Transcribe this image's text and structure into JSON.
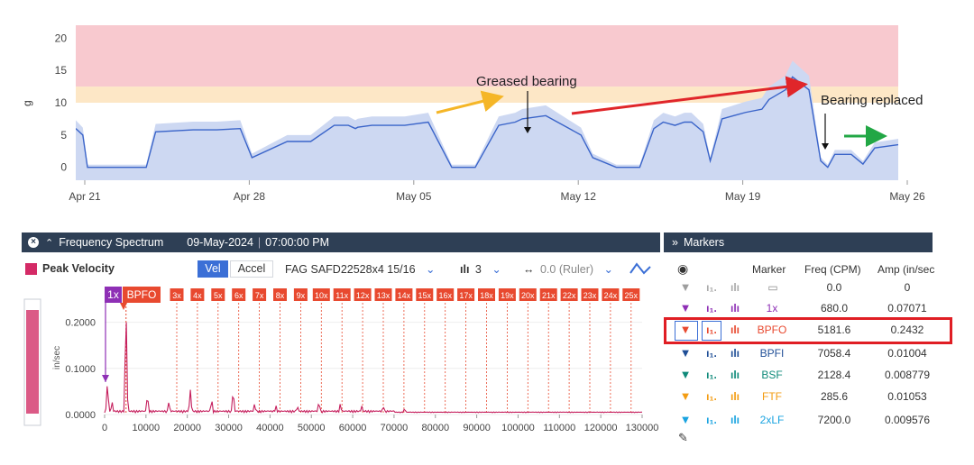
{
  "trend": {
    "y_axis_label": "g",
    "y_ticks": [
      "20",
      "15",
      "10",
      "5",
      "0"
    ],
    "x_ticks": [
      "Apr 21",
      "Apr 28",
      "May 05",
      "May 12",
      "May 19",
      "May 26"
    ],
    "annotations": {
      "greased": "Greased bearing",
      "replaced": "Bearing replaced"
    },
    "colors": {
      "alarm": "#f8c9cf",
      "alert": "#fde7c6",
      "fill": "#cdd8f2",
      "line": "#3a64c9",
      "arrow_yellow": "#f5b627",
      "arrow_red": "#e0262a",
      "arrow_green": "#22a745"
    }
  },
  "spectrum": {
    "title": "Frequency Spectrum",
    "date": "09-May-2024",
    "separator": "|",
    "time": "07:00:00 PM",
    "legend_label": "Peak Velocity",
    "vel_label": "Vel",
    "accel_label": "Accel",
    "bearing": "FAG SAFD22528x4 15/16",
    "harmonics_count": "3",
    "ruler": "0.0 (Ruler)",
    "y_axis_label": "in/sec",
    "y_ticks": [
      "0.2000",
      "0.1000",
      "0.0000"
    ],
    "x_ticks": [
      "0",
      "10000",
      "20000",
      "30000",
      "40000",
      "50000",
      "60000",
      "70000",
      "80000",
      "90000",
      "100000",
      "110000",
      "120000",
      "130000"
    ],
    "harmonic_labels": [
      "3x",
      "4x",
      "5x",
      "6x",
      "7x",
      "8x",
      "9x",
      "10x",
      "11x",
      "12x",
      "13x",
      "14x",
      "15x",
      "16x",
      "17x",
      "18x",
      "19x",
      "20x",
      "21x",
      "22x",
      "23x",
      "24x",
      "25x"
    ],
    "marker_1x": "1x",
    "marker_bpfo": "BPFO"
  },
  "markers": {
    "title": "Markers",
    "columns": [
      "Marker",
      "Freq (CPM)",
      "Amp (in/sec"
    ],
    "rows": [
      {
        "name": "",
        "freq": "0.0",
        "amp": "0",
        "color": "#9e9e9e"
      },
      {
        "name": "1x",
        "freq": "680.0",
        "amp": "0.07071",
        "color": "#8e2fb5"
      },
      {
        "name": "BPFO",
        "freq": "5181.6",
        "amp": "0.2432",
        "color": "#e8492f"
      },
      {
        "name": "BPFI",
        "freq": "7058.4",
        "amp": "0.01004",
        "color": "#1f4e96"
      },
      {
        "name": "BSF",
        "freq": "2128.4",
        "amp": "0.008779",
        "color": "#0f8a7a"
      },
      {
        "name": "FTF",
        "freq": "285.6",
        "amp": "0.01053",
        "color": "#f39c12"
      },
      {
        "name": "2xLF",
        "freq": "7200.0",
        "amp": "0.009576",
        "color": "#19a3e0"
      }
    ]
  },
  "chart_data": [
    {
      "type": "area",
      "title": "",
      "ylabel": "g",
      "xlabel": "",
      "ylim": [
        -2,
        22
      ],
      "x_categories": [
        "Apr 21",
        "Apr 28",
        "May 05",
        "May 12",
        "May 19",
        "May 26"
      ],
      "bands": [
        {
          "name": "alarm",
          "from": 12.5,
          "to": 22
        },
        {
          "name": "alert",
          "from": 10,
          "to": 12.5
        }
      ],
      "series": [
        {
          "name": "g",
          "x_days": [
            0,
            0.3,
            0.5,
            3,
            3.4,
            5,
            6,
            7,
            7.5,
            9,
            10,
            11,
            11.6,
            11.9,
            12,
            12.6,
            13,
            14,
            15,
            16,
            17,
            18,
            18.7,
            19,
            20,
            21,
            21.5,
            22,
            23,
            24,
            24.6,
            25,
            25.5,
            25.9,
            26.2,
            26.7,
            27,
            27.5,
            28,
            28.5,
            29.2,
            29.5,
            30.2,
            30.5,
            31.2,
            31.7,
            32,
            32.3,
            33,
            33.5,
            34,
            35
          ],
          "values": [
            6,
            5,
            0,
            0,
            5.5,
            5.8,
            5.8,
            6,
            1.5,
            4,
            4,
            6.5,
            6.5,
            6,
            6.2,
            6.5,
            6.5,
            6.5,
            7,
            0,
            0,
            6.5,
            7,
            7.5,
            8,
            6,
            5,
            1.5,
            0,
            0,
            6,
            7,
            6.5,
            7,
            7,
            5.5,
            1,
            7.5,
            8,
            8.5,
            9,
            10.5,
            12,
            14,
            12,
            1,
            0,
            2,
            2,
            0.5,
            3,
            3.5
          ]
        }
      ]
    },
    {
      "type": "line",
      "title": "Frequency Spectrum",
      "xlabel": "",
      "ylabel": "in/sec",
      "xlim": [
        0,
        130000
      ],
      "ylim": [
        0,
        0.25
      ],
      "series": [
        {
          "name": "Peak Velocity",
          "peaks_x": [
            680,
            1800,
            5181.6,
            10363,
            15545,
            20726,
            25908,
            31090,
            36271,
            41453,
            46635,
            51816,
            56998,
            62180,
            67361,
            72543
          ],
          "peaks_y": [
            0.07071,
            0.03,
            0.2432,
            0.045,
            0.03,
            0.055,
            0.035,
            0.055,
            0.025,
            0.02,
            0.02,
            0.03,
            0.025,
            0.02,
            0.02,
            0.015
          ]
        }
      ],
      "markers": [
        {
          "name": "1x",
          "x": 680
        },
        {
          "name": "BPFO",
          "x": 5181.6
        }
      ]
    }
  ]
}
